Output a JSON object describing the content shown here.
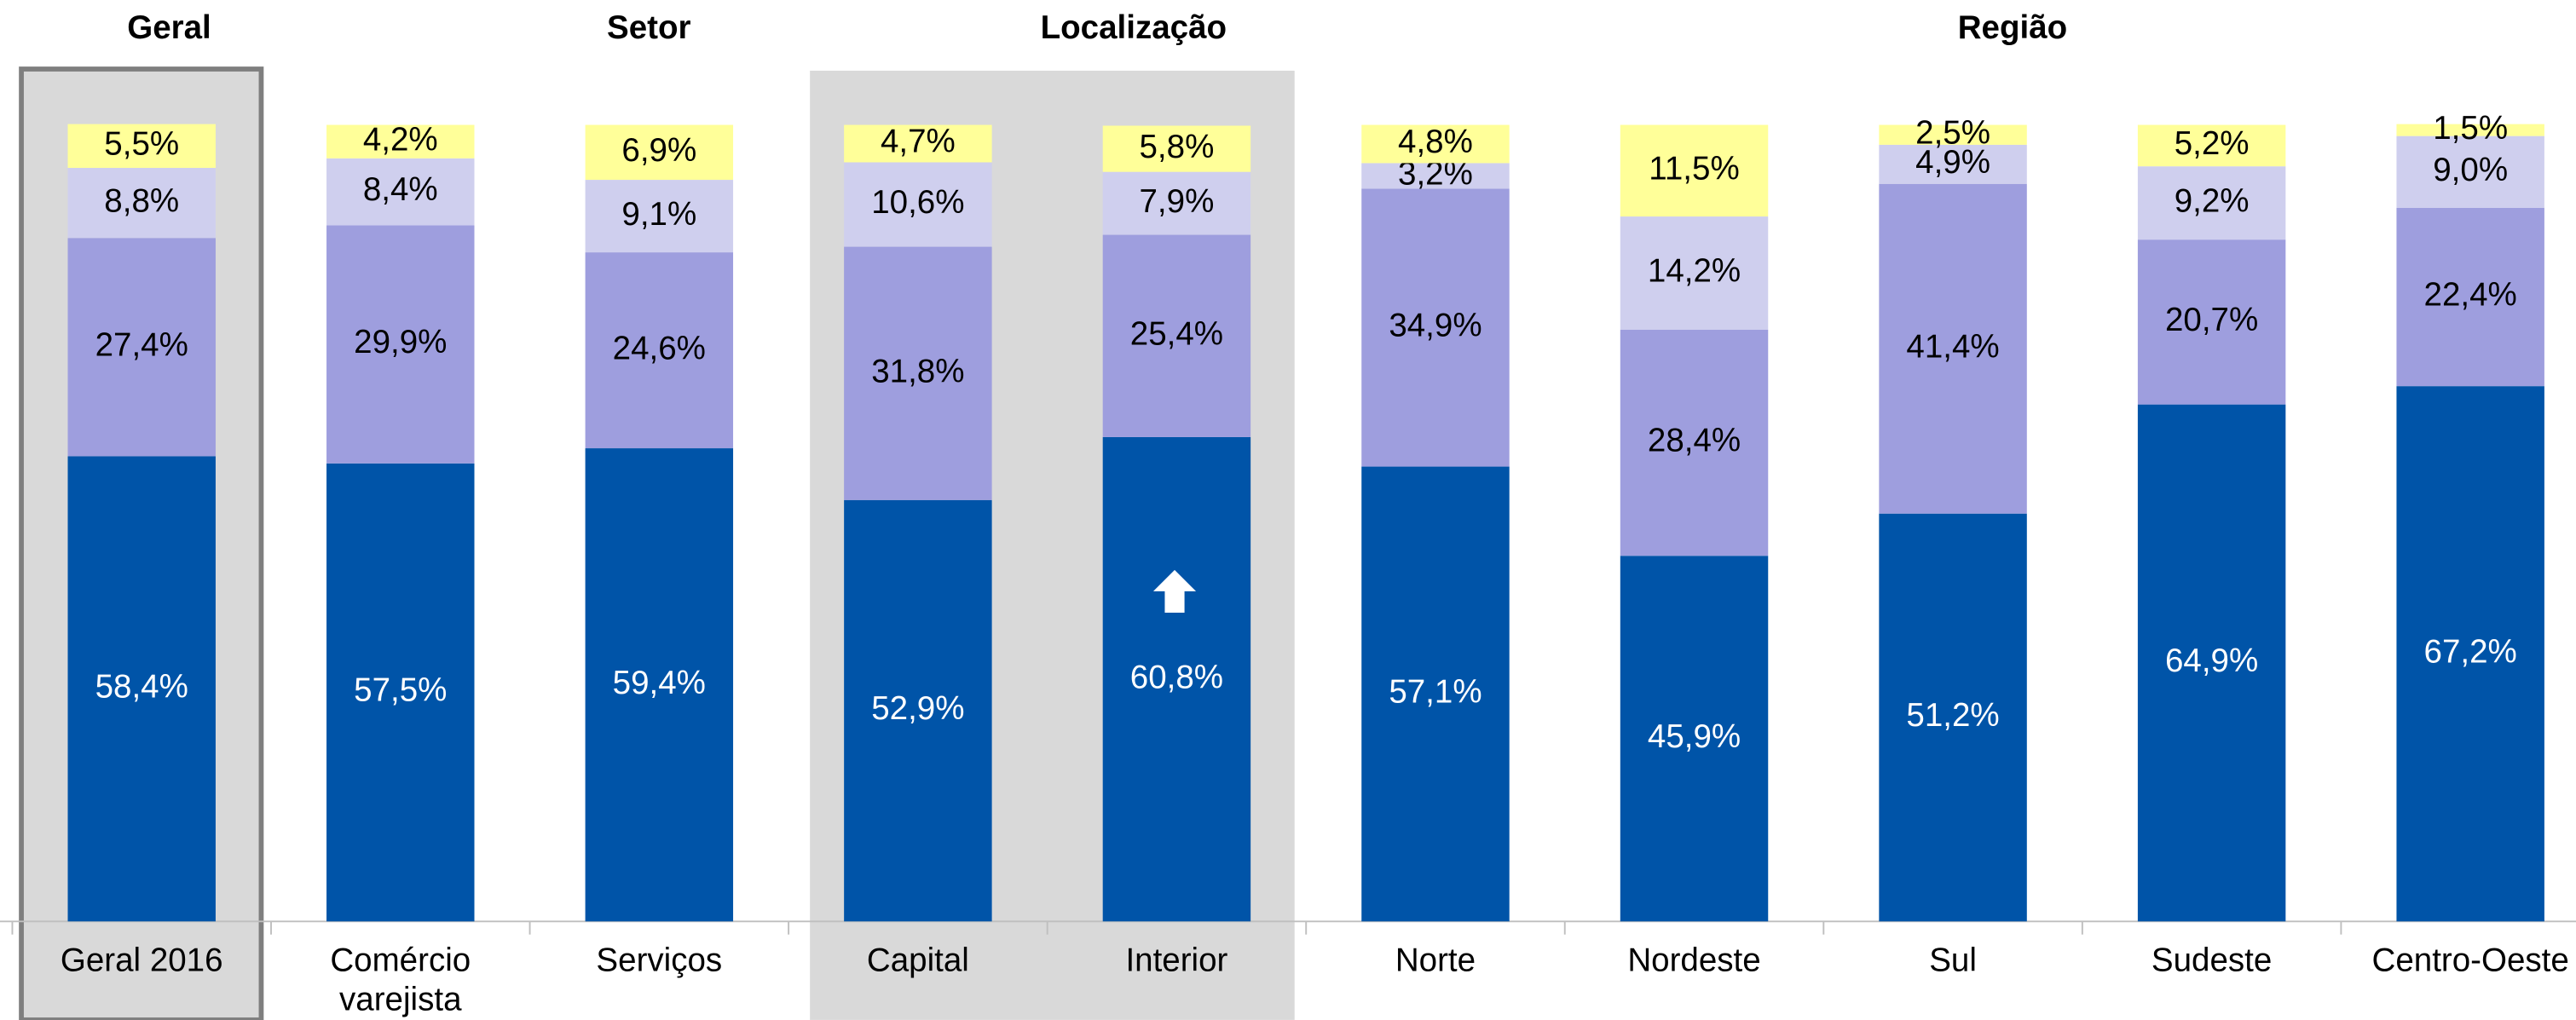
{
  "chart_data": {
    "type": "stacked_bar",
    "annotations": [
      "Geral",
      "Setor",
      "Localização",
      "Região"
    ],
    "categories": [
      "Geral 2016",
      "Comércio varejista",
      "Serviços",
      "Capital",
      "Interior",
      "Norte",
      "Nordeste",
      "Sul",
      "Sudeste",
      "Centro-Oeste"
    ],
    "series": [
      {
        "color": "#0054a8",
        "values": [
          58.4,
          57.5,
          59.4,
          52.9,
          60.8,
          57.1,
          45.9,
          51.2,
          64.9,
          67.2
        ],
        "value_labels": [
          "58,4%",
          "57,5%",
          "59,4%",
          "52,9%",
          "60,8%",
          "57,1%",
          "45,9%",
          "51,2%",
          "64,9%",
          "67,2%"
        ]
      },
      {
        "color": "#9e9ede",
        "values": [
          27.4,
          29.9,
          24.6,
          31.8,
          25.4,
          34.9,
          28.4,
          41.4,
          20.7,
          22.4
        ],
        "value_labels": [
          "27,4%",
          "29,9%",
          "24,6%",
          "31,8%",
          "25,4%",
          "34,9%",
          "28,4%",
          "41,4%",
          "20,7%",
          "22,4%"
        ]
      },
      {
        "color": "#cfcfee",
        "values": [
          8.8,
          8.4,
          9.1,
          10.6,
          7.9,
          3.2,
          14.2,
          4.9,
          9.2,
          9.0
        ],
        "value_labels": [
          "8,8%",
          "8,4%",
          "9,1%",
          "10,6%",
          "7,9%",
          "3,2%",
          "14,2%",
          "4,9%",
          "9,2%",
          "9,0%"
        ]
      },
      {
        "color": "#ffff99",
        "values": [
          5.5,
          4.2,
          6.9,
          4.7,
          5.8,
          4.8,
          11.5,
          2.5,
          5.2,
          1.5
        ],
        "value_labels": [
          "5,5%",
          "4,2%",
          "6,9%",
          "4,7%",
          "5,8%",
          "4,8%",
          "11,5%",
          "2,5%",
          "5,2%",
          "1,5%"
        ]
      }
    ],
    "ylim": [
      0,
      100
    ]
  }
}
